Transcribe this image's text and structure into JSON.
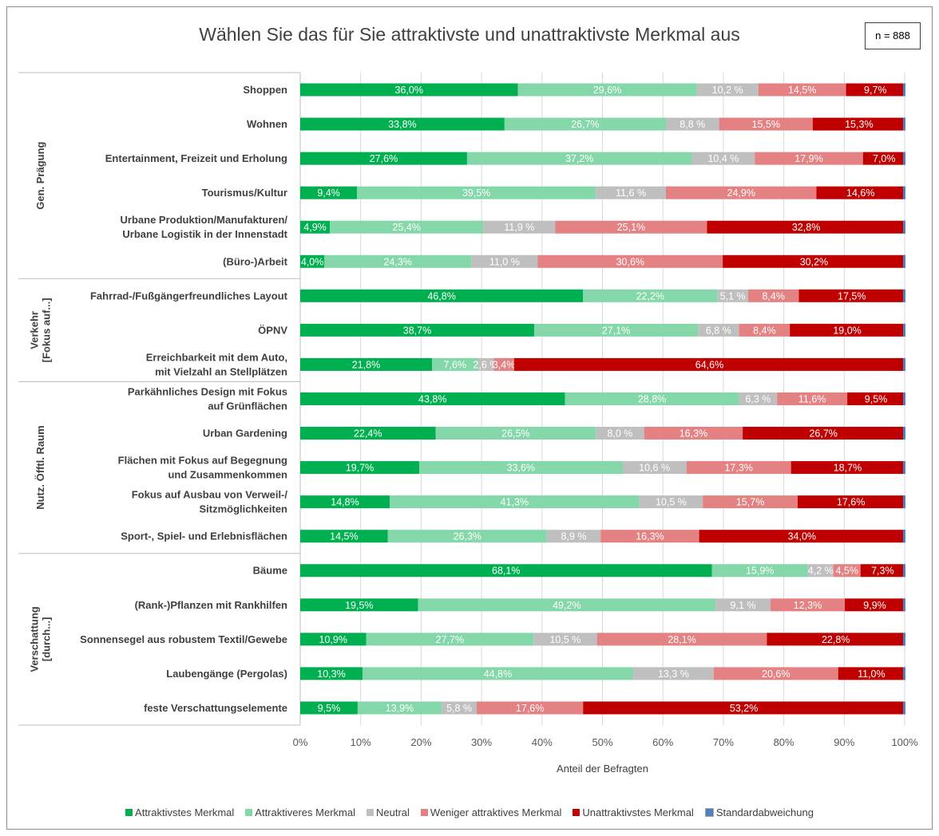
{
  "title": "Wählen Sie das für Sie attraktivste und unattraktivste Merkmal aus",
  "sample_note": "n = 888",
  "chart_data": {
    "type": "bar",
    "orientation": "horizontal",
    "stacked": "100%",
    "xlabel": "Anteil der Befragten",
    "xlim": [
      0,
      100
    ],
    "xticks": [
      "0%",
      "10%",
      "20%",
      "30%",
      "40%",
      "50%",
      "60%",
      "70%",
      "80%",
      "90%",
      "100%"
    ],
    "grid": "vertical",
    "legend_position": "bottom",
    "groups": [
      {
        "label": "Gen. Prägung",
        "rows": 6
      },
      {
        "label": "Verkehr [Fokus auf...]",
        "rows": 3
      },
      {
        "label": "Nutz. Öfftl. Raum",
        "rows": 5
      },
      {
        "label": "Verschattung [durch...]",
        "rows": 5
      }
    ],
    "categories": [
      "Shoppen",
      "Wohnen",
      "Entertainment, Freizeit und Erholung",
      "Tourismus/Kultur",
      "Urbane Produktion/Manufakturen/\nUrbane Logistik in der Innenstadt",
      "(Büro-)Arbeit",
      "Fahrrad-/Fußgängerfreundliches Layout",
      "ÖPNV",
      "Erreichbarkeit mit dem Auto,\nmit Vielzahl an Stellplätzen",
      "Parkähnliches Design mit Fokus\nauf Grünflächen",
      "Urban Gardening",
      "Flächen mit Fokus auf Begegnung\nund Zusammenkommen",
      "Fokus auf Ausbau von Verweil-/\nSitzmöglichkeiten",
      "Sport-, Spiel- und Erlebnisflächen",
      "Bäume",
      "(Rank-)Pflanzen mit Rankhilfen",
      "Sonnensegel aus robustem Textil/Gewebe",
      "Laubengänge (Pergolas)",
      "feste Verschattungselemente"
    ],
    "series": [
      {
        "name": "Attraktivstes Merkmal",
        "color": "#00b050",
        "label_color": "#ffffff",
        "values": [
          36.0,
          33.8,
          27.6,
          9.4,
          4.9,
          4.0,
          46.8,
          38.7,
          21.8,
          43.8,
          22.4,
          19.7,
          14.8,
          14.5,
          68.1,
          19.5,
          10.9,
          10.3,
          9.5
        ],
        "labels": [
          "36,0%",
          "33,8%",
          "27,6%",
          "9,4%",
          "4,9%",
          "4,0%",
          "46,8%",
          "38,7%",
          "21,8%",
          "43,8%",
          "22,4%",
          "19,7%",
          "14,8%",
          "14,5%",
          "68,1%",
          "19,5%",
          "10,9%",
          "10,3%",
          "9,5%"
        ]
      },
      {
        "name": "Attraktiveres Merkmal",
        "color": "#83d7a8",
        "label_color": "#ffffff",
        "values": [
          29.6,
          26.7,
          37.2,
          39.5,
          25.4,
          24.3,
          22.2,
          27.1,
          7.6,
          28.8,
          26.5,
          33.6,
          41.3,
          26.3,
          15.9,
          49.2,
          27.7,
          44.8,
          13.9
        ],
        "labels": [
          "29,6%",
          "26,7%",
          "37,2%",
          "39,5%",
          "25,4%",
          "24,3%",
          "22,2%",
          "27,1%",
          "7,6%",
          "28,8%",
          "26,5%",
          "33,6%",
          "41,3%",
          "26,3%",
          "15,9%",
          "49,2%",
          "27,7%",
          "44,8%",
          "13,9%"
        ]
      },
      {
        "name": "Neutral",
        "color": "#bfbfbf",
        "label_color": "#ffffff",
        "values": [
          10.2,
          8.8,
          10.4,
          11.6,
          11.9,
          11.0,
          5.1,
          6.8,
          2.6,
          6.3,
          8.0,
          10.6,
          10.5,
          8.9,
          4.2,
          9.1,
          10.5,
          13.3,
          5.8
        ],
        "labels": [
          "10,2 %",
          "8,8 %",
          "10,4 %",
          "11,6 %",
          "11,9 %",
          "11,0 %",
          "5,1 %",
          "6,8 %",
          "2,6 %",
          "6,3 %",
          "8,0 %",
          "10,6 %",
          "10,5 %",
          "8,9 %",
          "4,2 %",
          "9,1 %",
          "10,5 %",
          "13,3 %",
          "5,8 %"
        ]
      },
      {
        "name": "Weniger attraktives Merkmal",
        "color": "#e38183",
        "label_color": "#ffffff",
        "values": [
          14.5,
          15.5,
          17.9,
          24.9,
          25.1,
          30.6,
          8.4,
          8.4,
          3.4,
          11.6,
          16.3,
          17.3,
          15.7,
          16.3,
          4.5,
          12.3,
          28.1,
          20.6,
          17.6
        ],
        "labels": [
          "14,5%",
          "15,5%",
          "17,9%",
          "24,9%",
          "25,1%",
          "30,6%",
          "8,4%",
          "8,4%",
          "3,4%",
          "11,6%",
          "16,3%",
          "17,3%",
          "15,7%",
          "16,3%",
          "4,5%",
          "12,3%",
          "28,1%",
          "20,6%",
          "17,6%"
        ]
      },
      {
        "name": "Unattraktivstes Merkmal",
        "color": "#c00000",
        "label_color": "#ffffff",
        "values": [
          9.7,
          15.3,
          7.0,
          14.6,
          32.8,
          30.2,
          17.5,
          19.0,
          64.6,
          9.5,
          26.7,
          18.7,
          17.6,
          34.0,
          7.3,
          9.9,
          22.8,
          11.0,
          53.2
        ],
        "labels": [
          "9,7%",
          "15,3%",
          "7,0%",
          "14,6%",
          "32,8%",
          "30,2%",
          "17,5%",
          "19,0%",
          "64,6%",
          "9,5%",
          "26,7%",
          "18,7%",
          "17,6%",
          "34,0%",
          "7,3%",
          "9,9%",
          "22,8%",
          "11,0%",
          "53,2%"
        ]
      }
    ],
    "extra_legend": {
      "name": "Standardabweichung",
      "color": "#4f81bd"
    }
  }
}
